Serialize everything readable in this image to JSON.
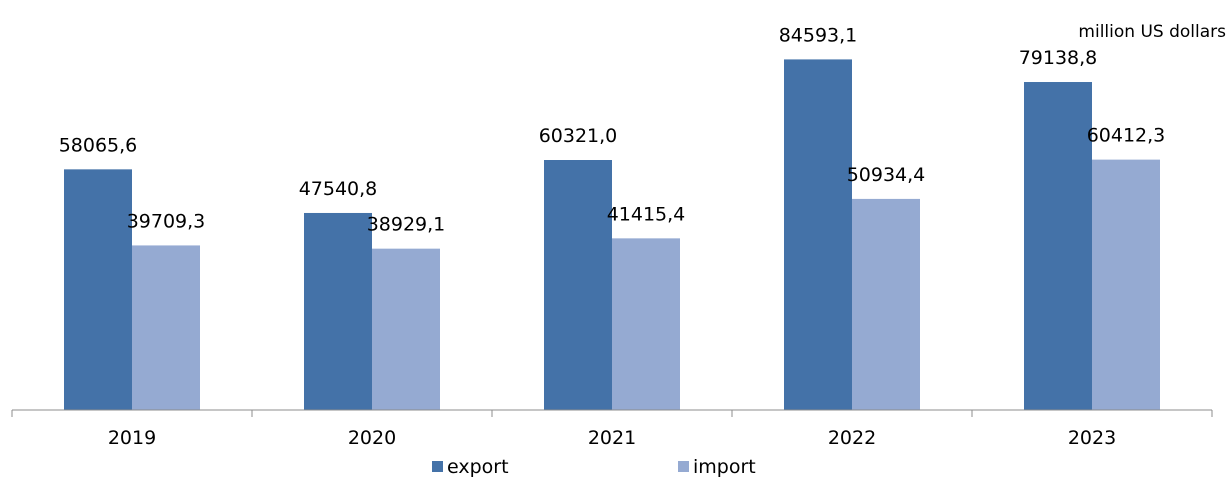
{
  "chart_data": {
    "type": "bar",
    "title": "",
    "unit_label": "million US dollars",
    "categories": [
      "2019",
      "2020",
      "2021",
      "2022",
      "2023"
    ],
    "series": [
      {
        "name": "export",
        "color": "#4472a8",
        "values": [
          58065.6,
          47540.8,
          60321.0,
          84593.1,
          79138.8
        ],
        "labels": [
          "58065,6",
          "47540,8",
          "60321,0",
          "84593,1",
          "79138,8"
        ]
      },
      {
        "name": "import",
        "color": "#95aad2",
        "values": [
          39709.3,
          38929.1,
          41415.4,
          50934.4,
          60412.3
        ],
        "labels": [
          "39709,3",
          "38929,1",
          "41415,4",
          "50934,4",
          "60412,3"
        ]
      }
    ],
    "ylim": [
      0,
      90000
    ],
    "grid": false,
    "legend_position": "bottom"
  }
}
